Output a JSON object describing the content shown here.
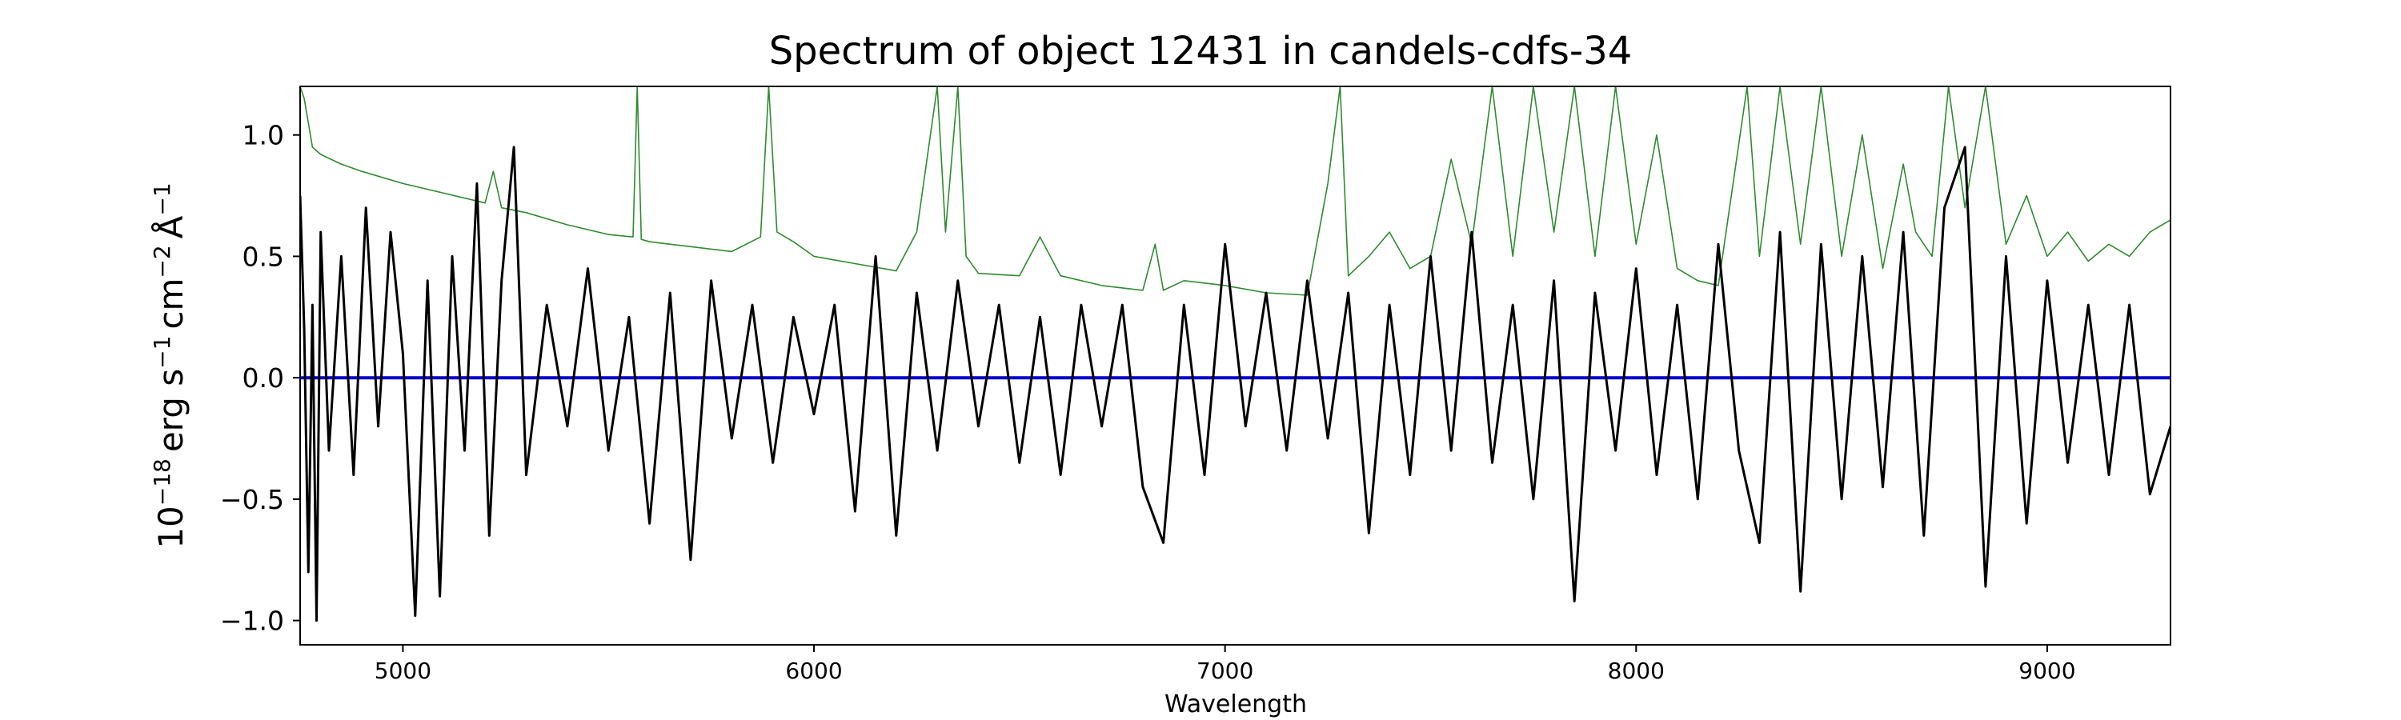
{
  "chart_data": {
    "type": "line",
    "title": "Spectrum of object 12431 in candels-cdfs-34",
    "xlabel": "Wavelength",
    "ylabel": {
      "base": "10",
      "exponent_base": "−18",
      "unit_erg": "erg s",
      "exponent_s": "−1",
      "unit_cm": "cm",
      "exponent_cm": "−2",
      "unit_angstrom": "Å",
      "exponent_angstrom": "−1"
    },
    "xlim": [
      4750,
      9300
    ],
    "ylim": [
      -1.1,
      1.2
    ],
    "xticks": [
      5000,
      6000,
      7000,
      8000,
      9000
    ],
    "xtick_labels": [
      "5000",
      "6000",
      "7000",
      "8000",
      "9000"
    ],
    "yticks": [
      -1.0,
      -0.5,
      0.0,
      0.5,
      1.0
    ],
    "ytick_labels": [
      "−1.0",
      "−0.5",
      "0.0",
      "0.5",
      "1.0"
    ],
    "grid": false,
    "series": [
      {
        "role": "flux",
        "color": "#000000",
        "x": [
          4750,
          4760,
          4770,
          4780,
          4790,
          4800,
          4820,
          4850,
          4880,
          4910,
          4940,
          4970,
          5000,
          5030,
          5060,
          5090,
          5120,
          5150,
          5180,
          5210,
          5240,
          5270,
          5300,
          5350,
          5400,
          5450,
          5500,
          5550,
          5600,
          5650,
          5700,
          5750,
          5800,
          5850,
          5900,
          5950,
          6000,
          6050,
          6100,
          6150,
          6200,
          6250,
          6300,
          6350,
          6400,
          6450,
          6500,
          6550,
          6600,
          6650,
          6700,
          6750,
          6800,
          6850,
          6900,
          6950,
          7000,
          7050,
          7100,
          7150,
          7200,
          7250,
          7300,
          7350,
          7400,
          7450,
          7500,
          7550,
          7600,
          7650,
          7700,
          7750,
          7800,
          7850,
          7900,
          7950,
          8000,
          8050,
          8100,
          8150,
          8200,
          8250,
          8300,
          8350,
          8400,
          8450,
          8500,
          8550,
          8600,
          8650,
          8700,
          8750,
          8800,
          8850,
          8900,
          8950,
          9000,
          9050,
          9100,
          9150,
          9200,
          9250,
          9300
        ],
        "y": [
          0.75,
          0.2,
          -0.8,
          0.3,
          -1.0,
          0.6,
          -0.3,
          0.5,
          -0.4,
          0.7,
          -0.2,
          0.6,
          0.1,
          -0.98,
          0.4,
          -0.9,
          0.5,
          -0.3,
          0.8,
          -0.65,
          0.4,
          0.95,
          -0.4,
          0.3,
          -0.2,
          0.45,
          -0.3,
          0.25,
          -0.6,
          0.35,
          -0.75,
          0.4,
          -0.25,
          0.3,
          -0.35,
          0.25,
          -0.15,
          0.3,
          -0.55,
          0.5,
          -0.65,
          0.35,
          -0.3,
          0.4,
          -0.2,
          0.3,
          -0.35,
          0.25,
          -0.4,
          0.3,
          -0.2,
          0.3,
          -0.45,
          -0.68,
          0.3,
          -0.4,
          0.55,
          -0.2,
          0.35,
          -0.3,
          0.4,
          -0.25,
          0.35,
          -0.64,
          0.3,
          -0.4,
          0.5,
          -0.3,
          0.6,
          -0.35,
          0.3,
          -0.5,
          0.4,
          -0.92,
          0.35,
          -0.3,
          0.45,
          -0.4,
          0.3,
          -0.5,
          0.55,
          -0.3,
          -0.68,
          0.6,
          -0.88,
          0.55,
          -0.5,
          0.5,
          -0.45,
          0.6,
          -0.65,
          0.7,
          0.95,
          -0.86,
          0.5,
          -0.6,
          0.4,
          -0.35,
          0.3,
          -0.4,
          0.3,
          -0.48,
          -0.2
        ]
      },
      {
        "role": "noise",
        "color": "#2e8b2e",
        "x": [
          4750,
          4760,
          4780,
          4800,
          4850,
          4900,
          5000,
          5100,
          5200,
          5220,
          5240,
          5300,
          5400,
          5500,
          5560,
          5570,
          5580,
          5600,
          5700,
          5800,
          5870,
          5890,
          5910,
          5950,
          6000,
          6100,
          6200,
          6250,
          6300,
          6320,
          6350,
          6370,
          6400,
          6500,
          6550,
          6600,
          6700,
          6800,
          6830,
          6850,
          6900,
          7000,
          7100,
          7200,
          7250,
          7280,
          7300,
          7350,
          7400,
          7450,
          7500,
          7550,
          7600,
          7650,
          7700,
          7750,
          7800,
          7850,
          7900,
          7950,
          8000,
          8050,
          8100,
          8150,
          8200,
          8270,
          8300,
          8350,
          8400,
          8450,
          8500,
          8550,
          8600,
          8650,
          8680,
          8720,
          8760,
          8800,
          8850,
          8900,
          8950,
          9000,
          9050,
          9100,
          9150,
          9200,
          9250,
          9300
        ],
        "y": [
          1.2,
          1.15,
          0.95,
          0.92,
          0.88,
          0.85,
          0.8,
          0.76,
          0.72,
          0.85,
          0.7,
          0.68,
          0.63,
          0.59,
          0.58,
          1.2,
          0.57,
          0.56,
          0.54,
          0.52,
          0.58,
          1.2,
          0.6,
          0.56,
          0.5,
          0.47,
          0.44,
          0.6,
          1.2,
          0.6,
          1.2,
          0.5,
          0.43,
          0.42,
          0.58,
          0.42,
          0.38,
          0.36,
          0.55,
          0.36,
          0.4,
          0.38,
          0.35,
          0.34,
          0.8,
          1.2,
          0.42,
          0.5,
          0.6,
          0.45,
          0.5,
          0.9,
          0.55,
          1.2,
          0.5,
          1.2,
          0.6,
          1.2,
          0.5,
          1.2,
          0.55,
          1.0,
          0.45,
          0.4,
          0.38,
          1.2,
          0.5,
          1.2,
          0.55,
          1.2,
          0.5,
          1.0,
          0.45,
          0.88,
          0.6,
          0.5,
          1.2,
          0.7,
          1.2,
          0.55,
          0.75,
          0.5,
          0.6,
          0.48,
          0.55,
          0.5,
          0.6,
          0.65
        ]
      },
      {
        "role": "zero",
        "color": "#0000cc",
        "x": [
          4750,
          9300
        ],
        "y": [
          0.0,
          0.0
        ]
      }
    ]
  }
}
